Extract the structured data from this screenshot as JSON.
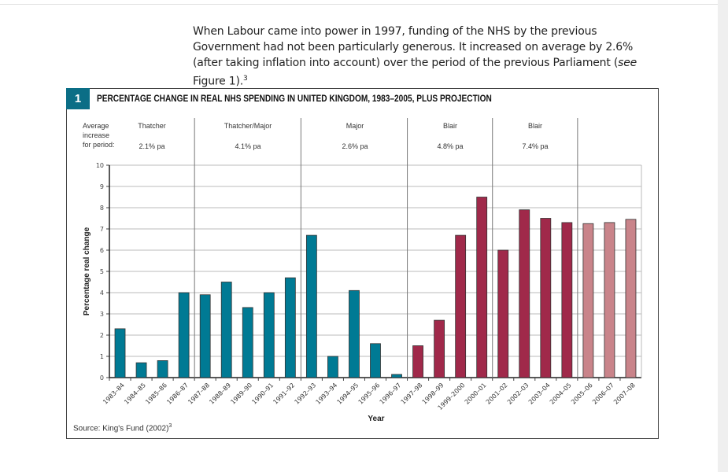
{
  "paragraph": {
    "text": "When Labour came into power in 1997, funding of the NHS by the previous Government had not been particularly generous. It increased on average by 2.6% (after taking inflation into account) over the period of the previous Parliament (",
    "see": "see",
    "text2": " Figure 1).",
    "sup": "3"
  },
  "figure": {
    "number": "1",
    "title": "PERCENTAGE CHANGE IN REAL NHS SPENDING IN UNITED KINGDOM, 1983–2005, PLUS PROJECTION",
    "average_label": [
      "Average",
      "increase",
      "for period:"
    ],
    "periods": [
      {
        "name": "Thatcher",
        "rate": "2.1% pa"
      },
      {
        "name": "Thatcher/Major",
        "rate": "4.1% pa"
      },
      {
        "name": "Major",
        "rate": "2.6% pa"
      },
      {
        "name": "Blair",
        "rate": "4.8% pa"
      },
      {
        "name": "Blair",
        "rate": "7.4% pa"
      }
    ],
    "source": "Source: King's Fund (2002)",
    "source_sup": "3"
  },
  "chart_data": {
    "type": "bar",
    "title": "PERCENTAGE CHANGE IN REAL NHS SPENDING IN UNITED KINGDOM, 1983–2005, PLUS PROJECTION",
    "xlabel": "Year",
    "ylabel": "Percentage real change",
    "ylim": [
      0,
      10
    ],
    "yticks": [
      0,
      1,
      2,
      3,
      4,
      5,
      6,
      7,
      8,
      9,
      10
    ],
    "grid": true,
    "categories": [
      "1983–84",
      "1984–85",
      "1985–86",
      "1986–87",
      "1987–88",
      "1988–89",
      "1989–90",
      "1990–91",
      "1991–92",
      "1992–93",
      "1993–94",
      "1994–95",
      "1995–96",
      "1996–97",
      "1997–98",
      "1998–99",
      "1999–2000",
      "2000–01",
      "2001–02",
      "2002–03",
      "2003–04",
      "2004–05",
      "2005–06",
      "2006–07",
      "2007–08"
    ],
    "values": [
      2.3,
      0.7,
      0.8,
      4.0,
      3.9,
      4.5,
      3.3,
      4.0,
      4.7,
      6.7,
      1.0,
      4.1,
      1.6,
      0.15,
      1.5,
      2.7,
      6.7,
      8.5,
      6.0,
      7.9,
      7.5,
      7.3,
      7.25,
      7.3,
      7.45
    ],
    "bar_groups": [
      "conservative",
      "conservative",
      "conservative",
      "conservative",
      "conservative",
      "conservative",
      "conservative",
      "conservative",
      "conservative",
      "conservative",
      "conservative",
      "conservative",
      "conservative",
      "conservative",
      "labour",
      "labour",
      "labour",
      "labour",
      "labour",
      "labour",
      "labour",
      "labour",
      "projection",
      "projection",
      "projection"
    ],
    "colors": {
      "conservative": "#007a94",
      "labour": "#a0294a",
      "projection": "#c9848a"
    }
  }
}
